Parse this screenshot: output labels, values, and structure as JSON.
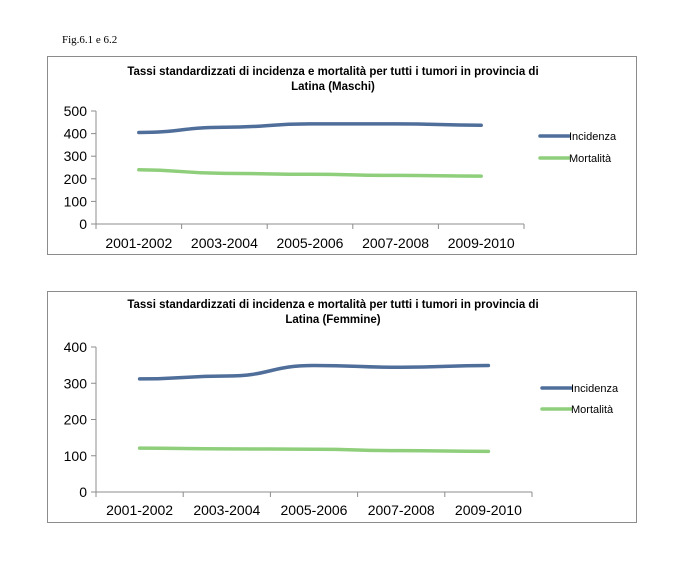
{
  "figure_caption": "Fig.6.1 e 6.2",
  "chart_data": [
    {
      "type": "line",
      "title_lines": [
        "Tassi standardizzati di incidenza e mortalità per tutti i tumori in provincia di",
        "Latina  (Maschi)"
      ],
      "categories": [
        "2001-2002",
        "2003-2004",
        "2005-2006",
        "2007-2008",
        "2009-2010"
      ],
      "series": [
        {
          "name": "Incidenza",
          "color": "#4f6e9a",
          "values": [
            405,
            428,
            443,
            443,
            437
          ]
        },
        {
          "name": "Mortalità",
          "color": "#8fcf7c",
          "values": [
            240,
            224,
            220,
            215,
            212
          ]
        }
      ],
      "y_ticks": [
        "0",
        "100",
        "200",
        "300",
        "400",
        "500"
      ],
      "ylim": [
        0,
        500
      ],
      "grid": false,
      "legend": "right"
    },
    {
      "type": "line",
      "title_lines": [
        "Tassi standardizzati di incidenza e mortalità per tutti i tumori  in provincia di",
        "Latina (Femmine)"
      ],
      "categories": [
        "2001-2002",
        "2003-2004",
        "2005-2006",
        "2007-2008",
        "2009-2010"
      ],
      "series": [
        {
          "name": "Incidenza",
          "color": "#4f6e9a",
          "values": [
            312,
            320,
            349,
            344,
            349
          ]
        },
        {
          "name": "Mortalità",
          "color": "#8fcf7c",
          "values": [
            121,
            119,
            118,
            114,
            112
          ]
        }
      ],
      "y_ticks": [
        "0",
        "100",
        "200",
        "300",
        "400"
      ],
      "ylim": [
        0,
        400
      ],
      "grid": false,
      "legend": "right"
    }
  ]
}
